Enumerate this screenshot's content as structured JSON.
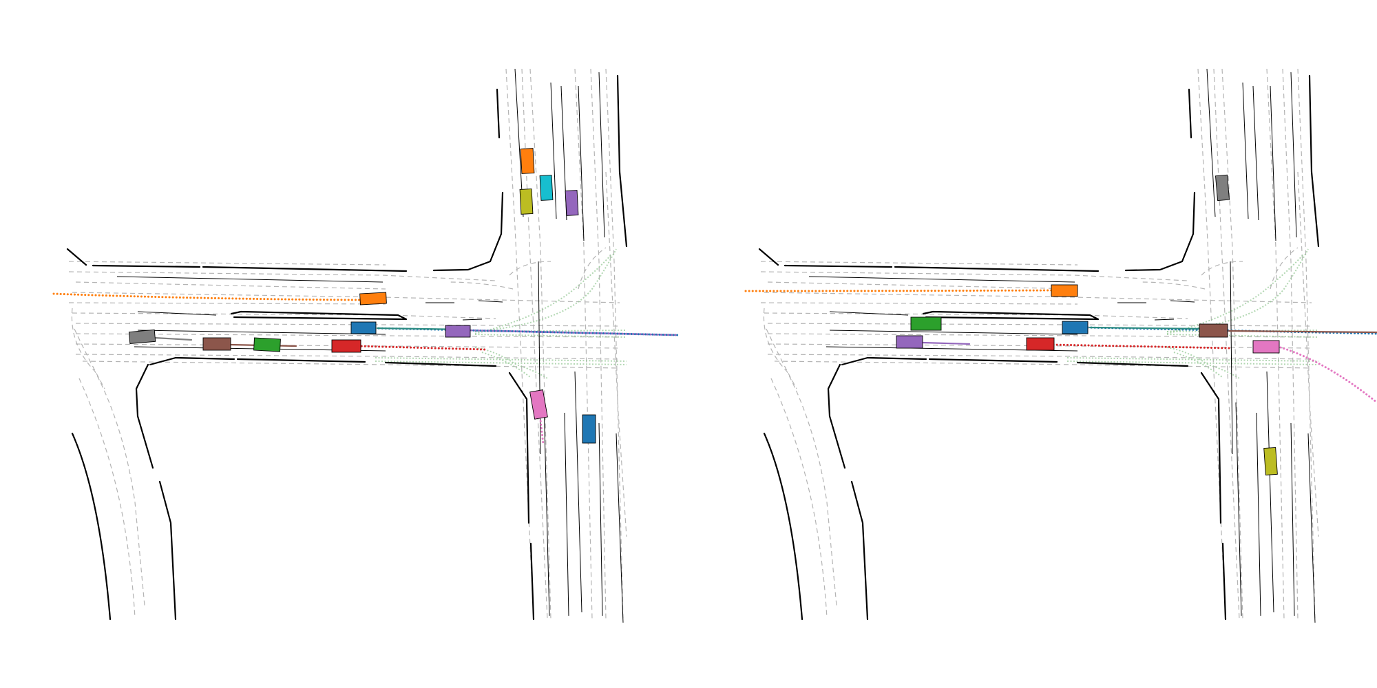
{
  "panels": [
    {
      "id": "left",
      "agents": [
        {
          "id": "blue",
          "color": "#1f77b4"
        },
        {
          "id": "orange",
          "color": "#ff7f0e"
        },
        {
          "id": "green",
          "color": "#2ca02c"
        },
        {
          "id": "red",
          "color": "#d62728"
        },
        {
          "id": "purple",
          "color": "#9467bd"
        },
        {
          "id": "brown",
          "color": "#8c564b"
        },
        {
          "id": "pink",
          "color": "#e377c2"
        },
        {
          "id": "gray",
          "color": "#7f7f7f"
        },
        {
          "id": "olive",
          "color": "#bcbd22"
        },
        {
          "id": "cyan",
          "color": "#17becf"
        },
        {
          "id": "blue-2",
          "color": "#1f77b4"
        },
        {
          "id": "purple-2",
          "color": "#9467bd"
        }
      ]
    },
    {
      "id": "right",
      "agents": [
        {
          "id": "blue",
          "color": "#1f77b4"
        },
        {
          "id": "orange",
          "color": "#ff7f0e"
        },
        {
          "id": "green",
          "color": "#2ca02c"
        },
        {
          "id": "red",
          "color": "#d62728"
        },
        {
          "id": "purple",
          "color": "#9467bd"
        },
        {
          "id": "brown",
          "color": "#8c564b"
        },
        {
          "id": "pink",
          "color": "#e377c2"
        },
        {
          "id": "gray",
          "color": "#7f7f7f"
        },
        {
          "id": "olive",
          "color": "#bcbd22"
        }
      ]
    }
  ]
}
